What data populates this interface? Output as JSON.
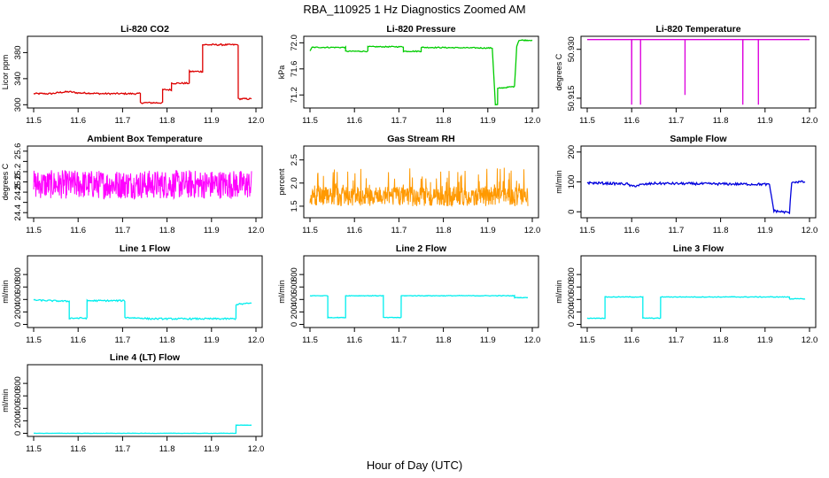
{
  "title": "RBA_110925  1 Hz Diagnostics Zoomed AM",
  "xlabel": "Hour of Day (UTC)",
  "chart_data": [
    {
      "type": "line",
      "title": "Li-820 CO2",
      "ylabel": "Licor ppm",
      "color": "#dd0000",
      "xlim": [
        11.5,
        12.0
      ],
      "ylim": [
        295,
        405
      ],
      "xticks": [
        "11.5",
        "11.6",
        "11.7",
        "11.8",
        "11.9",
        "12.0"
      ],
      "yticks": [
        300,
        340,
        380
      ],
      "ytick_labels": [
        "300",
        "340",
        "380"
      ],
      "noise": 1.2,
      "x": [
        11.5,
        11.54,
        11.56,
        11.58,
        11.6,
        11.62,
        11.65,
        11.7,
        11.74,
        11.7401,
        11.79,
        11.7901,
        11.81,
        11.8101,
        11.85,
        11.8501,
        11.88,
        11.8801,
        11.96,
        11.9601,
        11.99
      ],
      "y": [
        317,
        317,
        319,
        320,
        318,
        318,
        317,
        317,
        317,
        303,
        303,
        323,
        323,
        333,
        333,
        351,
        351,
        392,
        392,
        309,
        309
      ]
    },
    {
      "type": "line",
      "title": "Li-820 Pressure",
      "ylabel": "kPa",
      "color": "#00cc00",
      "xlim": [
        11.5,
        12.0
      ],
      "ylim": [
        71.0,
        72.1
      ],
      "xticks": [
        "11.5",
        "11.6",
        "11.7",
        "11.8",
        "11.9",
        "12.0"
      ],
      "yticks": [
        71.2,
        71.6,
        72.0
      ],
      "ytick_labels": [
        "71.2",
        "71.6",
        "72.0"
      ],
      "noise": 0.008,
      "x": [
        11.5,
        11.505,
        11.58,
        11.5801,
        11.63,
        11.6301,
        11.71,
        11.7101,
        11.75,
        11.7501,
        11.91,
        11.917,
        11.922,
        11.9221,
        11.96,
        11.965,
        11.97,
        12.0
      ],
      "y": [
        71.88,
        71.93,
        71.93,
        71.87,
        71.87,
        71.94,
        71.94,
        71.87,
        71.87,
        71.93,
        71.92,
        71.05,
        71.05,
        71.3,
        71.33,
        71.95,
        72.04,
        72.04
      ]
    },
    {
      "type": "line",
      "title": "Li-820 Temperature",
      "ylabel": "degrees C",
      "color": "#dd00dd",
      "xlim": [
        11.5,
        12.0
      ],
      "ylim": [
        50.912,
        50.934
      ],
      "xticks": [
        "11.5",
        "11.6",
        "11.7",
        "11.8",
        "11.9",
        "12.0"
      ],
      "yticks": [
        50.915,
        50.93
      ],
      "ytick_labels": [
        "50.915",
        "50.930"
      ],
      "noise": 0,
      "x": [
        11.5,
        11.5999,
        11.6,
        11.6001,
        11.6199,
        11.62,
        11.6201,
        11.7199,
        11.72,
        11.7201,
        11.8499,
        11.85,
        11.8501,
        11.8849,
        11.885,
        11.8851,
        12.0
      ],
      "y": [
        50.933,
        50.933,
        50.913,
        50.933,
        50.933,
        50.913,
        50.933,
        50.933,
        50.916,
        50.933,
        50.933,
        50.913,
        50.933,
        50.933,
        50.913,
        50.933,
        50.933
      ]
    },
    {
      "type": "line",
      "title": "Ambient Box Temperature",
      "ylabel": "degrees C",
      "color": "#ff00ff",
      "xlim": [
        11.5,
        12.0
      ],
      "ylim": [
        24.3,
        25.7
      ],
      "xticks": [
        "11.5",
        "11.6",
        "11.7",
        "11.8",
        "11.9",
        "12.0"
      ],
      "yticks": [
        24.4,
        24.6,
        24.8,
        25.0,
        25.2,
        25.4,
        25.6
      ],
      "ytick_labels": [
        "24.4",
        "",
        "24.8",
        "25.0",
        "25.2",
        "",
        "25.6"
      ],
      "noise": 0.28,
      "noise_points": 600,
      "x": [
        11.5,
        11.99
      ],
      "y": [
        24.95,
        24.95
      ]
    },
    {
      "type": "line",
      "title": "Gas Stream RH",
      "ylabel": "percent",
      "color": "#ff9900",
      "xlim": [
        11.5,
        12.0
      ],
      "ylim": [
        1.25,
        2.8
      ],
      "xticks": [
        "11.5",
        "11.6",
        "11.7",
        "11.8",
        "11.9",
        "12.0"
      ],
      "yticks": [
        1.5,
        2.0,
        2.5
      ],
      "ytick_labels": [
        "1.5",
        "2.0",
        "2.5"
      ],
      "noise": 0.32,
      "noise_points": 600,
      "noise_positive": true,
      "x": [
        11.5,
        11.99
      ],
      "y": [
        1.55,
        1.55
      ]
    },
    {
      "type": "line",
      "title": "Sample Flow",
      "ylabel": "ml/min",
      "color": "#0000dd",
      "xlim": [
        11.5,
        12.0
      ],
      "ylim": [
        -20,
        220
      ],
      "xticks": [
        "11.5",
        "11.6",
        "11.7",
        "11.8",
        "11.9",
        "12.0"
      ],
      "yticks": [
        0,
        100,
        200
      ],
      "ytick_labels": [
        "0",
        "100",
        "200"
      ],
      "noise": 4,
      "x": [
        11.5,
        11.59,
        11.6,
        11.62,
        11.65,
        11.9,
        11.91,
        11.92,
        11.955,
        11.96,
        11.99
      ],
      "y": [
        97,
        93,
        85,
        90,
        95,
        92,
        90,
        3,
        -3,
        100,
        100
      ]
    },
    {
      "type": "line",
      "title": "Line 1 Flow",
      "ylabel": "ml/min",
      "color": "#00eeee",
      "xlim": [
        11.5,
        12.0
      ],
      "ylim": [
        -50,
        1100
      ],
      "xticks": [
        "11.5",
        "11.6",
        "11.7",
        "11.8",
        "11.9",
        "12.0"
      ],
      "yticks": [
        0,
        200,
        400,
        600,
        800
      ],
      "ytick_labels": [
        "0",
        "200",
        "400",
        "600",
        "800"
      ],
      "noise": 12,
      "x": [
        11.5,
        11.58,
        11.5801,
        11.62,
        11.6201,
        11.705,
        11.7051,
        11.745,
        11.76,
        11.955,
        11.9551,
        11.99
      ],
      "y": [
        390,
        370,
        100,
        100,
        380,
        380,
        110,
        100,
        90,
        90,
        320,
        340
      ]
    },
    {
      "type": "line",
      "title": "Line 2 Flow",
      "ylabel": "ml/min",
      "color": "#00eeee",
      "xlim": [
        11.5,
        12.0
      ],
      "ylim": [
        -50,
        1100
      ],
      "xticks": [
        "11.5",
        "11.6",
        "11.7",
        "11.8",
        "11.9",
        "12.0"
      ],
      "yticks": [
        0,
        200,
        400,
        600,
        800
      ],
      "ytick_labels": [
        "0",
        "200",
        "400",
        "600",
        "800"
      ],
      "noise": 5,
      "x": [
        11.5,
        11.54,
        11.5401,
        11.58,
        11.5801,
        11.665,
        11.6651,
        11.705,
        11.7051,
        11.96,
        11.9601,
        11.99
      ],
      "y": [
        460,
        460,
        110,
        110,
        460,
        460,
        110,
        110,
        460,
        460,
        430,
        430
      ]
    },
    {
      "type": "line",
      "title": "Line 3 Flow",
      "ylabel": "ml/min",
      "color": "#00eeee",
      "xlim": [
        11.5,
        12.0
      ],
      "ylim": [
        -50,
        1100
      ],
      "xticks": [
        "11.5",
        "11.6",
        "11.7",
        "11.8",
        "11.9",
        "12.0"
      ],
      "yticks": [
        0,
        200,
        400,
        600,
        800
      ],
      "ytick_labels": [
        "0",
        "200",
        "400",
        "600",
        "800"
      ],
      "noise": 5,
      "x": [
        11.5,
        11.54,
        11.5401,
        11.625,
        11.6251,
        11.665,
        11.6651,
        11.955,
        11.9551,
        11.99
      ],
      "y": [
        100,
        100,
        440,
        440,
        100,
        100,
        440,
        440,
        410,
        410
      ]
    },
    {
      "type": "line",
      "title": "Line 4 (LT) Flow",
      "ylabel": "ml/min",
      "color": "#00eeee",
      "xlim": [
        11.5,
        12.0
      ],
      "ylim": [
        -50,
        1100
      ],
      "xticks": [
        "11.5",
        "11.6",
        "11.7",
        "11.8",
        "11.9",
        "12.0"
      ],
      "yticks": [
        0,
        200,
        400,
        600,
        800
      ],
      "ytick_labels": [
        "0",
        "200",
        "400",
        "600",
        "800"
      ],
      "noise": 2,
      "x": [
        11.5,
        11.955,
        11.9551,
        11.99
      ],
      "y": [
        0,
        0,
        130,
        130
      ]
    }
  ]
}
